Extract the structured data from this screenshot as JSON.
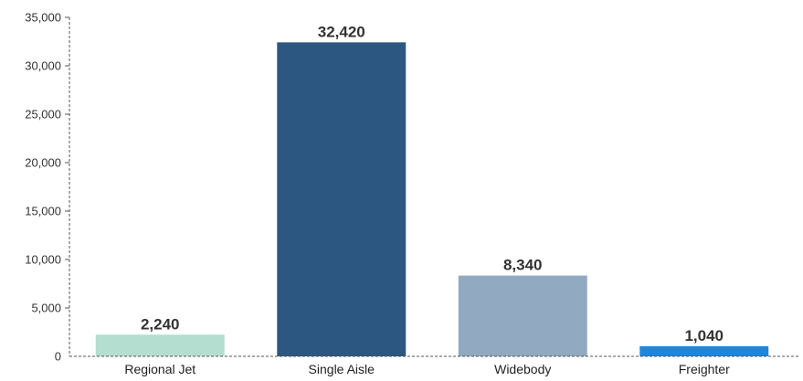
{
  "chart_data": {
    "type": "bar",
    "categories": [
      "Regional Jet",
      "Single Aisle",
      "Widebody",
      "Freighter"
    ],
    "values": [
      2240,
      32420,
      8340,
      1040
    ],
    "value_labels": [
      "2,240",
      "32,420",
      "8,340",
      "1,040"
    ],
    "colors": [
      "#b4ded0",
      "#2c5781",
      "#92a9c2",
      "#1f86dd"
    ],
    "y_ticks": [
      0,
      5000,
      10000,
      15000,
      20000,
      25000,
      30000,
      35000
    ],
    "y_tick_labels": [
      "0",
      "5,000",
      "10,000",
      "15,000",
      "20,000",
      "25,000",
      "30,000",
      "35,000"
    ],
    "ylim": [
      0,
      35000
    ],
    "title": "",
    "xlabel": "",
    "ylabel": "",
    "grid": false,
    "legend": "none"
  }
}
